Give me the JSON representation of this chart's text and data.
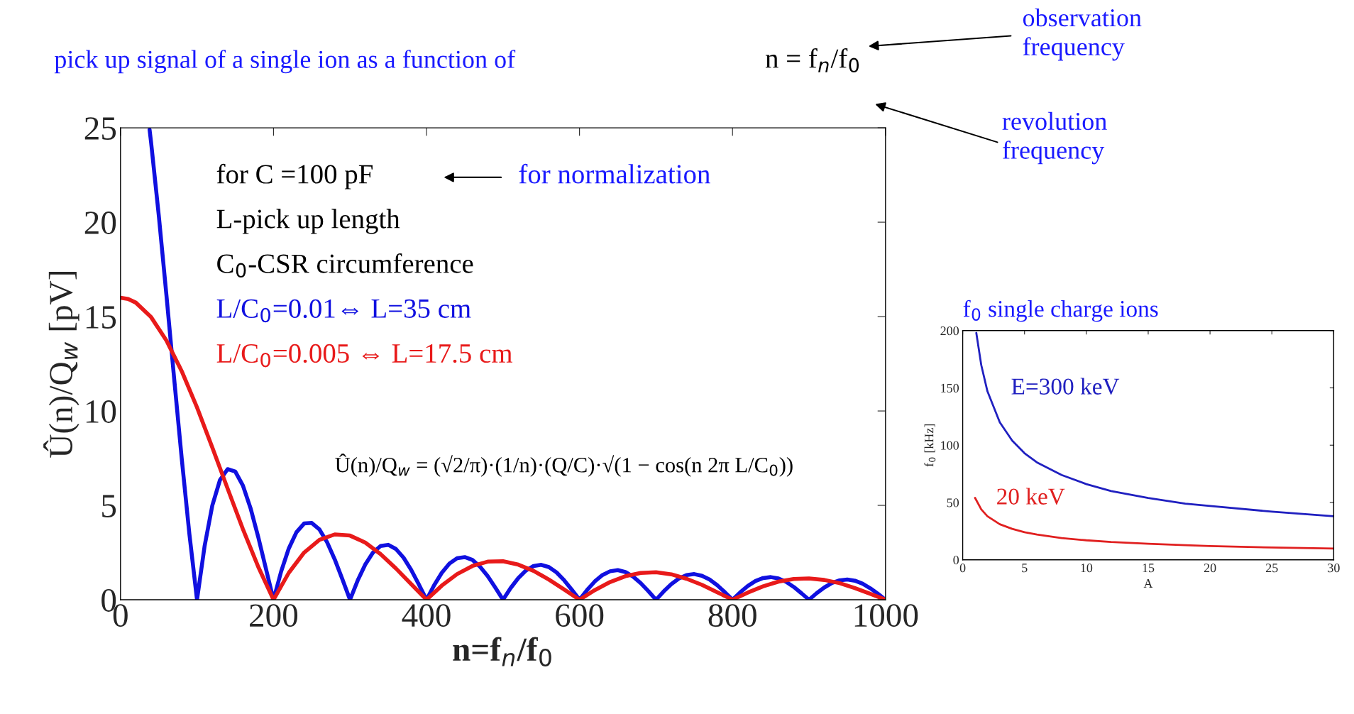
{
  "chart_data": [
    {
      "type": "line",
      "title": "pick up signal of a single ion as a function of",
      "subtitle": "n = f$_{n}$/f$_{0}$",
      "xlabel": "n=f$_{n}$/f$_{0}$",
      "ylabel": "Û(n)/Q$_{w}$ [pV]",
      "xlim": [
        0,
        1000
      ],
      "ylim": [
        0,
        25
      ],
      "xticks": [
        0,
        200,
        400,
        600,
        800,
        1000
      ],
      "yticks": [
        0,
        5,
        10,
        15,
        20,
        25
      ],
      "grid": false,
      "legend": false,
      "annotations": [
        "for C =100 pF",
        "for normalization",
        "L-pick up length",
        "C$_{0}$-CSR circumference",
        "Û(n)/Q$_{w}$ = (√2/π)·(1/n)·(Q/C)·√(1 − cos(n 2π L/C$_{0}$))",
        "observation\nfrequency",
        "revolution\nfrequency"
      ],
      "series": [
        {
          "name": "L/C$_{0}$=0.01⇔ L=35 cm",
          "color": "#1010e0",
          "x": [
            38,
            40,
            50,
            60,
            70,
            80,
            90,
            100,
            110,
            120,
            130,
            140,
            150,
            160,
            170,
            180,
            190,
            200,
            210,
            220,
            230,
            240,
            250,
            260,
            270,
            280,
            290,
            300,
            310,
            320,
            330,
            340,
            350,
            360,
            370,
            380,
            390,
            400,
            410,
            420,
            430,
            440,
            450,
            460,
            470,
            480,
            490,
            500,
            510,
            520,
            530,
            540,
            550,
            560,
            570,
            580,
            590,
            600,
            610,
            620,
            630,
            640,
            650,
            660,
            670,
            680,
            690,
            700,
            710,
            720,
            730,
            740,
            750,
            760,
            770,
            780,
            790,
            800,
            810,
            820,
            830,
            840,
            850,
            860,
            870,
            880,
            890,
            900,
            910,
            920,
            930,
            940,
            950,
            960,
            970,
            980,
            990,
            1000
          ],
          "values": [
            24.9,
            24.22,
            20.37,
            16.15,
            11.77,
            7.49,
            3.5,
            0,
            2.86,
            4.99,
            6.34,
            6.92,
            6.79,
            6.05,
            4.85,
            3.33,
            1.66,
            0,
            1.5,
            2.72,
            3.58,
            4.04,
            4.07,
            3.73,
            3.05,
            2.14,
            1.09,
            0,
            1.02,
            1.87,
            2.5,
            2.85,
            2.91,
            2.69,
            2.23,
            1.58,
            0.81,
            0,
            0.77,
            1.43,
            1.92,
            2.2,
            2.26,
            2.11,
            1.75,
            1.25,
            0.64,
            0,
            0.62,
            1.15,
            1.55,
            1.79,
            1.85,
            1.73,
            1.45,
            1.03,
            0.53,
            0,
            0.52,
            0.97,
            1.31,
            1.51,
            1.57,
            1.47,
            1.23,
            0.88,
            0.46,
            0,
            0.44,
            0.83,
            1.13,
            1.31,
            1.36,
            1.27,
            1.07,
            0.77,
            0.4,
            0,
            0.39,
            0.73,
            0.99,
            1.15,
            1.2,
            1.13,
            0.95,
            0.68,
            0.35,
            0,
            0.35,
            0.65,
            0.89,
            1.03,
            1.07,
            1.01,
            0.85,
            0.61,
            0.32,
            0
          ]
        },
        {
          "name": "L/C$_{0}$=0.005 ⇔ L=17.5 cm",
          "color": "#e81a1a",
          "x": [
            0,
            10,
            20,
            40,
            60,
            80,
            100,
            120,
            140,
            160,
            180,
            200,
            220,
            240,
            260,
            280,
            300,
            320,
            340,
            360,
            380,
            400,
            420,
            440,
            460,
            480,
            500,
            520,
            540,
            560,
            580,
            600,
            620,
            640,
            660,
            680,
            700,
            720,
            740,
            760,
            780,
            800,
            820,
            840,
            860,
            880,
            900,
            920,
            940,
            960,
            980,
            1000
          ],
          "values": [
            16,
            15.93,
            15.74,
            14.97,
            13.73,
            12.11,
            10.19,
            8.07,
            5.89,
            3.74,
            1.75,
            0,
            1.43,
            2.5,
            3.17,
            3.46,
            3.4,
            3.03,
            2.42,
            1.66,
            0.83,
            0,
            0.75,
            1.36,
            1.79,
            2.02,
            2.04,
            1.86,
            1.53,
            1.07,
            0.54,
            0,
            0.51,
            0.94,
            1.25,
            1.42,
            1.46,
            1.35,
            1.11,
            0.79,
            0.4,
            0,
            0.38,
            0.71,
            0.96,
            1.1,
            1.13,
            1.05,
            0.88,
            0.62,
            0.32,
            0
          ]
        }
      ]
    },
    {
      "type": "line",
      "title": "f$_{0}$ single charge ions",
      "xlabel": "A",
      "ylabel": "f$_{0}$ [kHz]",
      "xlim": [
        0,
        30
      ],
      "ylim": [
        0,
        200
      ],
      "xticks": [
        0,
        5,
        10,
        15,
        20,
        25,
        30
      ],
      "yticks": [
        0,
        50,
        100,
        150,
        200
      ],
      "grid": false,
      "legend": false,
      "series": [
        {
          "name": "E=300 keV",
          "color": "#2020c0",
          "x": [
            1.1,
            1.5,
            2,
            3,
            4,
            5,
            6,
            8,
            10,
            12,
            15,
            18,
            20,
            25,
            30
          ],
          "values": [
            198,
            170,
            147,
            120,
            104,
            93,
            85,
            74,
            66,
            60,
            54,
            49,
            47,
            42,
            38
          ]
        },
        {
          "name": "20 keV",
          "color": "#e02020",
          "x": [
            1,
            1.5,
            2,
            3,
            4,
            5,
            6,
            8,
            10,
            12,
            15,
            18,
            20,
            25,
            30
          ],
          "values": [
            54,
            44,
            38,
            31,
            27,
            24,
            22,
            19,
            17,
            15.5,
            14,
            12.7,
            12,
            10.7,
            9.8
          ]
        }
      ]
    }
  ]
}
